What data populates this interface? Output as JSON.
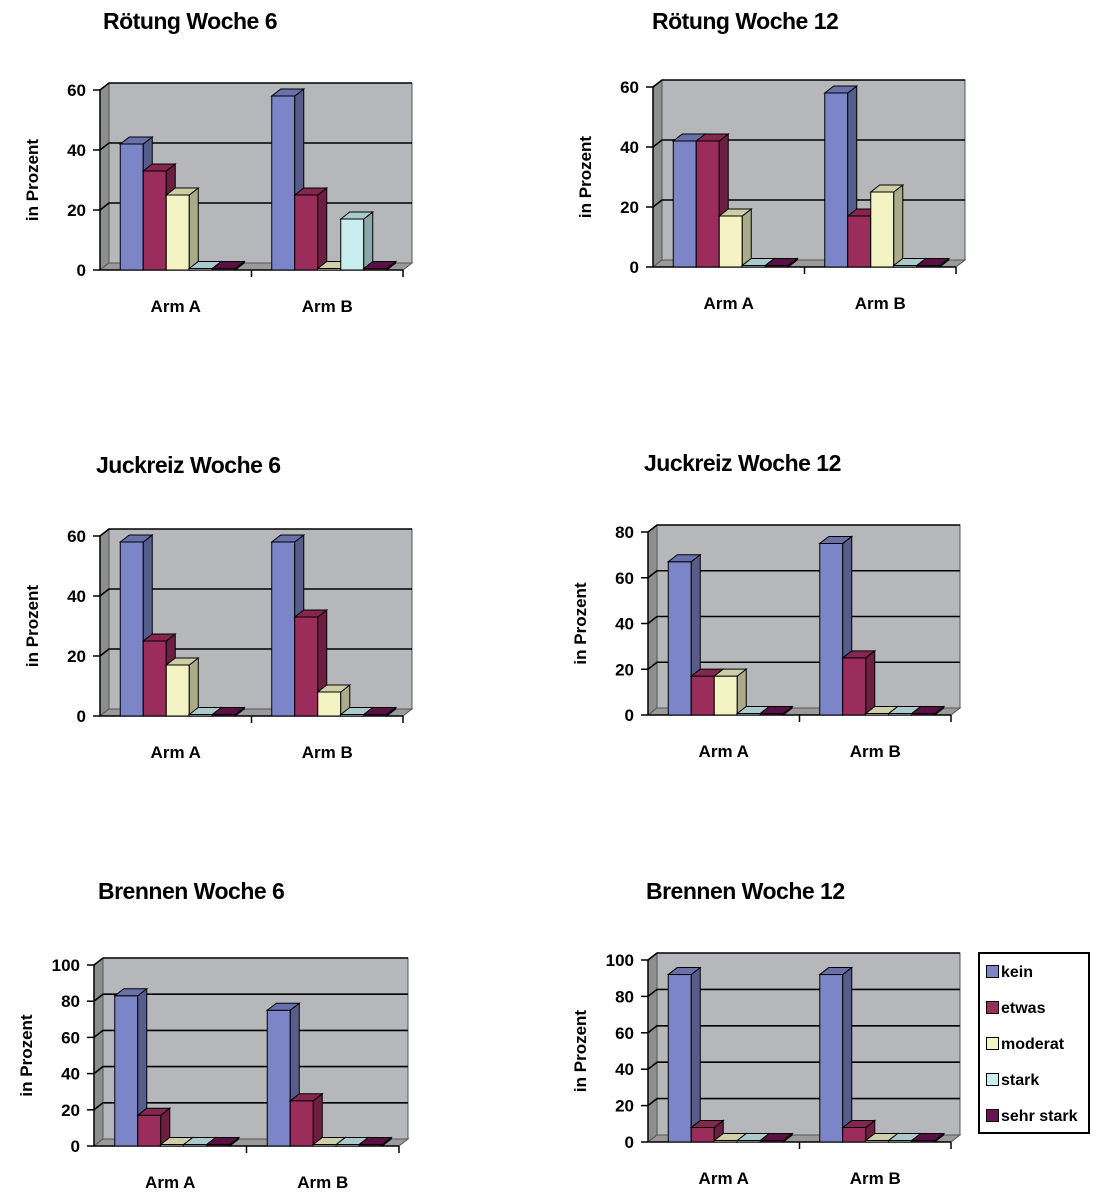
{
  "series_colors": [
    "#7b85c8",
    "#9b2d5d",
    "#f4f3c4",
    "#c8eef0",
    "#6a1350"
  ],
  "legend": [
    "kein",
    "etwas",
    "moderat",
    "stark",
    "sehr stark"
  ],
  "chart_data": [
    {
      "type": "bar",
      "title": "Rötung Woche 6",
      "ylabel": "in Prozent",
      "ylim": [
        0,
        60
      ],
      "yticks": [
        "0",
        "20",
        "40",
        "60"
      ],
      "categories": [
        "Arm A",
        "Arm B"
      ],
      "series": [
        {
          "name": "kein",
          "values": [
            42,
            58
          ]
        },
        {
          "name": "etwas",
          "values": [
            33,
            25
          ]
        },
        {
          "name": "moderat",
          "values": [
            25,
            0
          ]
        },
        {
          "name": "stark",
          "values": [
            0,
            17
          ]
        },
        {
          "name": "sehr stark",
          "values": [
            0,
            0
          ]
        }
      ]
    },
    {
      "type": "bar",
      "title": "Rötung Woche 12",
      "ylabel": "in Prozent",
      "ylim": [
        0,
        60
      ],
      "yticks": [
        "0",
        "20",
        "40",
        "60"
      ],
      "categories": [
        "Arm A",
        "Arm B"
      ],
      "series": [
        {
          "name": "kein",
          "values": [
            42,
            58
          ]
        },
        {
          "name": "etwas",
          "values": [
            42,
            17
          ]
        },
        {
          "name": "moderat",
          "values": [
            17,
            25
          ]
        },
        {
          "name": "stark",
          "values": [
            0,
            0
          ]
        },
        {
          "name": "sehr stark",
          "values": [
            0,
            0
          ]
        }
      ]
    },
    {
      "type": "bar",
      "title": "Juckreiz Woche 6",
      "ylabel": "in Prozent",
      "ylim": [
        0,
        60
      ],
      "yticks": [
        "0",
        "20",
        "40",
        "60"
      ],
      "categories": [
        "Arm A",
        "Arm B"
      ],
      "series": [
        {
          "name": "kein",
          "values": [
            58,
            58
          ]
        },
        {
          "name": "etwas",
          "values": [
            25,
            33
          ]
        },
        {
          "name": "moderat",
          "values": [
            17,
            8
          ]
        },
        {
          "name": "stark",
          "values": [
            0,
            0
          ]
        },
        {
          "name": "sehr stark",
          "values": [
            0,
            0
          ]
        }
      ]
    },
    {
      "type": "bar",
      "title": "Juckreiz Woche 12",
      "ylabel": "in Prozent",
      "ylim": [
        0,
        80
      ],
      "yticks": [
        "0",
        "20",
        "40",
        "60",
        "80"
      ],
      "categories": [
        "Arm A",
        "Arm B"
      ],
      "series": [
        {
          "name": "kein",
          "values": [
            67,
            75
          ]
        },
        {
          "name": "etwas",
          "values": [
            17,
            25
          ]
        },
        {
          "name": "moderat",
          "values": [
            17,
            0
          ]
        },
        {
          "name": "stark",
          "values": [
            0,
            0
          ]
        },
        {
          "name": "sehr stark",
          "values": [
            0,
            0
          ]
        }
      ]
    },
    {
      "type": "bar",
      "title": "Brennen Woche 6",
      "ylabel": "in Prozent",
      "ylim": [
        0,
        100
      ],
      "yticks": [
        "0",
        "20",
        "40",
        "60",
        "80",
        "100"
      ],
      "categories": [
        "Arm A",
        "Arm B"
      ],
      "series": [
        {
          "name": "kein",
          "values": [
            83,
            75
          ]
        },
        {
          "name": "etwas",
          "values": [
            17,
            25
          ]
        },
        {
          "name": "moderat",
          "values": [
            0,
            0
          ]
        },
        {
          "name": "stark",
          "values": [
            0,
            0
          ]
        },
        {
          "name": "sehr stark",
          "values": [
            0,
            0
          ]
        }
      ]
    },
    {
      "type": "bar",
      "title": "Brennen Woche 12",
      "ylabel": "in Prozent",
      "ylim": [
        0,
        100
      ],
      "yticks": [
        "0",
        "20",
        "40",
        "60",
        "80",
        "100"
      ],
      "categories": [
        "Arm A",
        "Arm B"
      ],
      "series": [
        {
          "name": "kein",
          "values": [
            92,
            92
          ]
        },
        {
          "name": "etwas",
          "values": [
            8,
            8
          ]
        },
        {
          "name": "moderat",
          "values": [
            0,
            0
          ]
        },
        {
          "name": "stark",
          "values": [
            0,
            0
          ]
        },
        {
          "name": "sehr stark",
          "values": [
            0,
            0
          ]
        }
      ]
    }
  ]
}
